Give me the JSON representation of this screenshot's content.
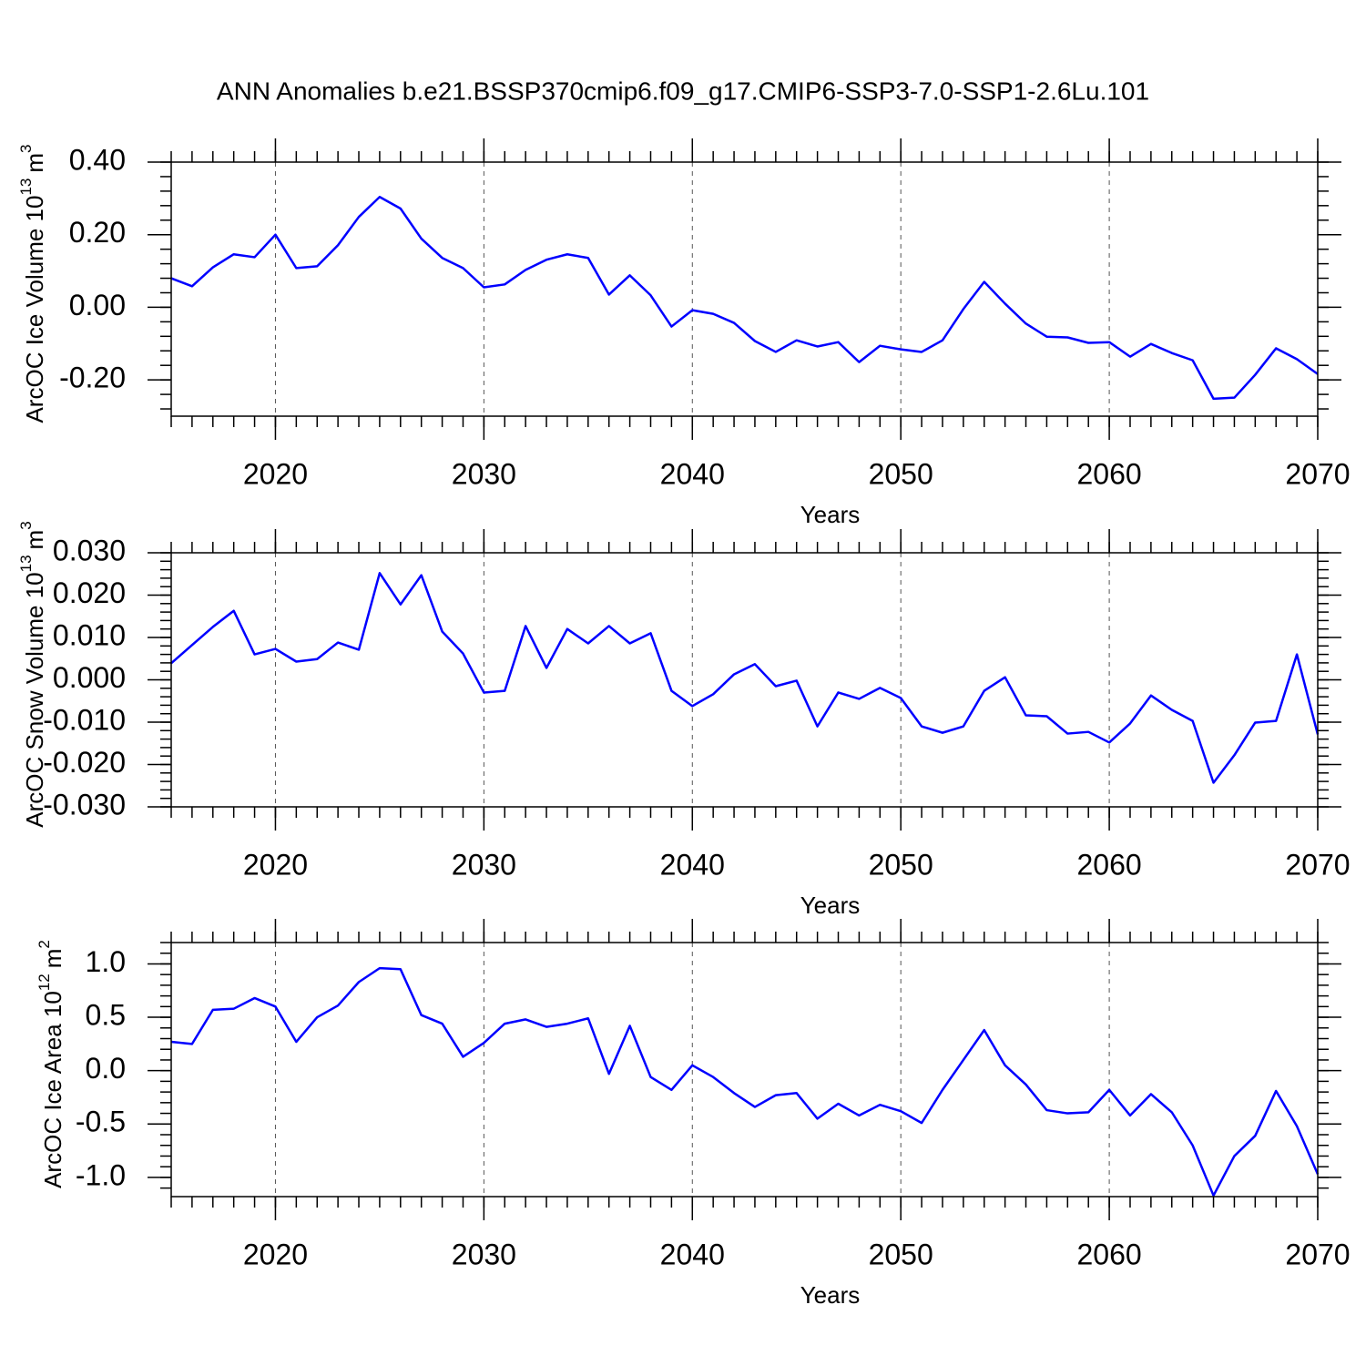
{
  "chart_data": [
    {
      "type": "line",
      "title": "ANN Anomalies b.e21.BSSP370cmip6.f09_g17.CMIP6-SSP3-7.0-SSP1-2.6Lu.101",
      "ylabel": {
        "text": "ArcOC Ice Volume 10",
        "exponent": "13",
        "unit": "m",
        "unit_exponent": "3"
      },
      "xlabel": "Years",
      "color": "#0000ff",
      "grid": "x",
      "xminor_step": 1,
      "yminor_step": 0.04,
      "x": [
        2015,
        2016,
        2017,
        2018,
        2019,
        2020,
        2021,
        2022,
        2023,
        2024,
        2025,
        2026,
        2027,
        2028,
        2029,
        2030,
        2031,
        2032,
        2033,
        2034,
        2035,
        2036,
        2037,
        2038,
        2039,
        2040,
        2041,
        2042,
        2043,
        2044,
        2045,
        2046,
        2047,
        2048,
        2049,
        2050,
        2051,
        2052,
        2053,
        2054,
        2055,
        2056,
        2057,
        2058,
        2059,
        2060,
        2061,
        2062,
        2063,
        2064,
        2065,
        2066,
        2067,
        2068,
        2069,
        2070
      ],
      "values": [
        0.08,
        0.058,
        0.11,
        0.146,
        0.138,
        0.2,
        0.108,
        0.113,
        0.171,
        0.249,
        0.304,
        0.272,
        0.189,
        0.136,
        0.108,
        0.055,
        0.063,
        0.103,
        0.131,
        0.146,
        0.136,
        0.035,
        0.088,
        0.033,
        -0.053,
        -0.008,
        -0.018,
        -0.043,
        -0.093,
        -0.123,
        -0.091,
        -0.108,
        -0.096,
        -0.151,
        -0.106,
        -0.116,
        -0.123,
        -0.091,
        -0.005,
        0.07,
        0.01,
        -0.045,
        -0.081,
        -0.083,
        -0.098,
        -0.096,
        -0.136,
        -0.101,
        -0.126,
        -0.146,
        -0.252,
        -0.249,
        -0.186,
        -0.113,
        -0.143,
        -0.184
      ],
      "xlim": [
        2015,
        2070
      ],
      "xticks": [
        2020,
        2030,
        2040,
        2050,
        2060,
        2070
      ],
      "ylim": [
        -0.3,
        0.4
      ],
      "yticks": [
        {
          "value": 0.4,
          "label": "0.40"
        },
        {
          "value": 0.2,
          "label": "0.20"
        },
        {
          "value": 0,
          "label": "0.00"
        },
        {
          "value": -0.2,
          "label": "-0.20"
        }
      ]
    },
    {
      "type": "line",
      "ylabel": {
        "text": "ArcOC Snow Volume 10",
        "exponent": "13",
        "unit": "m",
        "unit_exponent": "3"
      },
      "xlabel": "Years",
      "color": "#0000ff",
      "grid": "x",
      "xminor_step": 1,
      "yminor_step": 0.002,
      "x": [
        2015,
        2016,
        2017,
        2018,
        2019,
        2020,
        2021,
        2022,
        2023,
        2024,
        2025,
        2026,
        2027,
        2028,
        2029,
        2030,
        2031,
        2032,
        2033,
        2034,
        2035,
        2036,
        2037,
        2038,
        2039,
        2040,
        2041,
        2042,
        2043,
        2044,
        2045,
        2046,
        2047,
        2048,
        2049,
        2050,
        2051,
        2052,
        2053,
        2054,
        2055,
        2056,
        2057,
        2058,
        2059,
        2060,
        2061,
        2062,
        2063,
        2064,
        2065,
        2066,
        2067,
        2068,
        2069,
        2070
      ],
      "values": [
        0.0039,
        0.0082,
        0.0125,
        0.0163,
        0.006,
        0.0073,
        0.0043,
        0.0049,
        0.0088,
        0.0071,
        0.0252,
        0.0178,
        0.0247,
        0.0114,
        0.0062,
        -0.003,
        -0.0026,
        0.0127,
        0.0028,
        0.012,
        0.0086,
        0.0127,
        0.0086,
        0.011,
        -0.0026,
        -0.0062,
        -0.0034,
        0.0013,
        0.0037,
        -0.0015,
        -0.0002,
        -0.011,
        -0.003,
        -0.0045,
        -0.0019,
        -0.0043,
        -0.011,
        -0.0125,
        -0.011,
        -0.0026,
        0.0006,
        -0.0084,
        -0.0086,
        -0.0127,
        -0.0123,
        -0.0148,
        -0.0103,
        -0.0037,
        -0.0071,
        -0.0097,
        -0.0243,
        -0.0178,
        -0.0101,
        -0.0097,
        0.006,
        -0.0129
      ],
      "xlim": [
        2015,
        2070
      ],
      "xticks": [
        2020,
        2030,
        2040,
        2050,
        2060,
        2070
      ],
      "ylim": [
        -0.03,
        0.03
      ],
      "yticks": [
        {
          "value": 0.03,
          "label": "0.030"
        },
        {
          "value": 0.02,
          "label": "0.020"
        },
        {
          "value": 0.01,
          "label": "0.010"
        },
        {
          "value": 0,
          "label": "0.000"
        },
        {
          "value": -0.01,
          "label": "-0.010"
        },
        {
          "value": -0.02,
          "label": "-0.020"
        },
        {
          "value": -0.03,
          "label": "-0.030"
        }
      ]
    },
    {
      "type": "line",
      "ylabel": {
        "text": "ArcOC Ice Area 10",
        "exponent": "12",
        "unit": "m",
        "unit_exponent": "2"
      },
      "xlabel": "Years",
      "color": "#0000ff",
      "grid": "x",
      "xminor_step": 1,
      "yminor_step": 0.1,
      "x": [
        2015,
        2016,
        2017,
        2018,
        2019,
        2020,
        2021,
        2022,
        2023,
        2024,
        2025,
        2026,
        2027,
        2028,
        2029,
        2030,
        2031,
        2032,
        2033,
        2034,
        2035,
        2036,
        2037,
        2038,
        2039,
        2040,
        2041,
        2042,
        2043,
        2044,
        2045,
        2046,
        2047,
        2048,
        2049,
        2050,
        2051,
        2052,
        2053,
        2054,
        2055,
        2056,
        2057,
        2058,
        2059,
        2060,
        2061,
        2062,
        2063,
        2064,
        2065,
        2066,
        2067,
        2068,
        2069,
        2070
      ],
      "values": [
        0.27,
        0.25,
        0.57,
        0.58,
        0.68,
        0.6,
        0.27,
        0.5,
        0.61,
        0.83,
        0.96,
        0.95,
        0.52,
        0.44,
        0.13,
        0.26,
        0.44,
        0.48,
        0.41,
        0.44,
        0.49,
        -0.03,
        0.42,
        -0.06,
        -0.18,
        0.05,
        -0.06,
        -0.21,
        -0.34,
        -0.23,
        -0.21,
        -0.45,
        -0.31,
        -0.42,
        -0.32,
        -0.38,
        -0.49,
        -0.18,
        0.1,
        0.38,
        0.05,
        -0.13,
        -0.37,
        -0.4,
        -0.39,
        -0.18,
        -0.42,
        -0.22,
        -0.39,
        -0.7,
        -1.17,
        -0.8,
        -0.61,
        -0.19,
        -0.52,
        -0.97
      ],
      "xlim": [
        2015,
        2070
      ],
      "xticks": [
        2020,
        2030,
        2040,
        2050,
        2060,
        2070
      ],
      "ylim": [
        -1.18,
        1.2
      ],
      "yticks": [
        {
          "value": 1,
          "label": "1.0"
        },
        {
          "value": 0.5,
          "label": "0.5"
        },
        {
          "value": 0,
          "label": "0.0"
        },
        {
          "value": -0.5,
          "label": "-0.5"
        },
        {
          "value": -1,
          "label": "-1.0"
        }
      ]
    }
  ]
}
